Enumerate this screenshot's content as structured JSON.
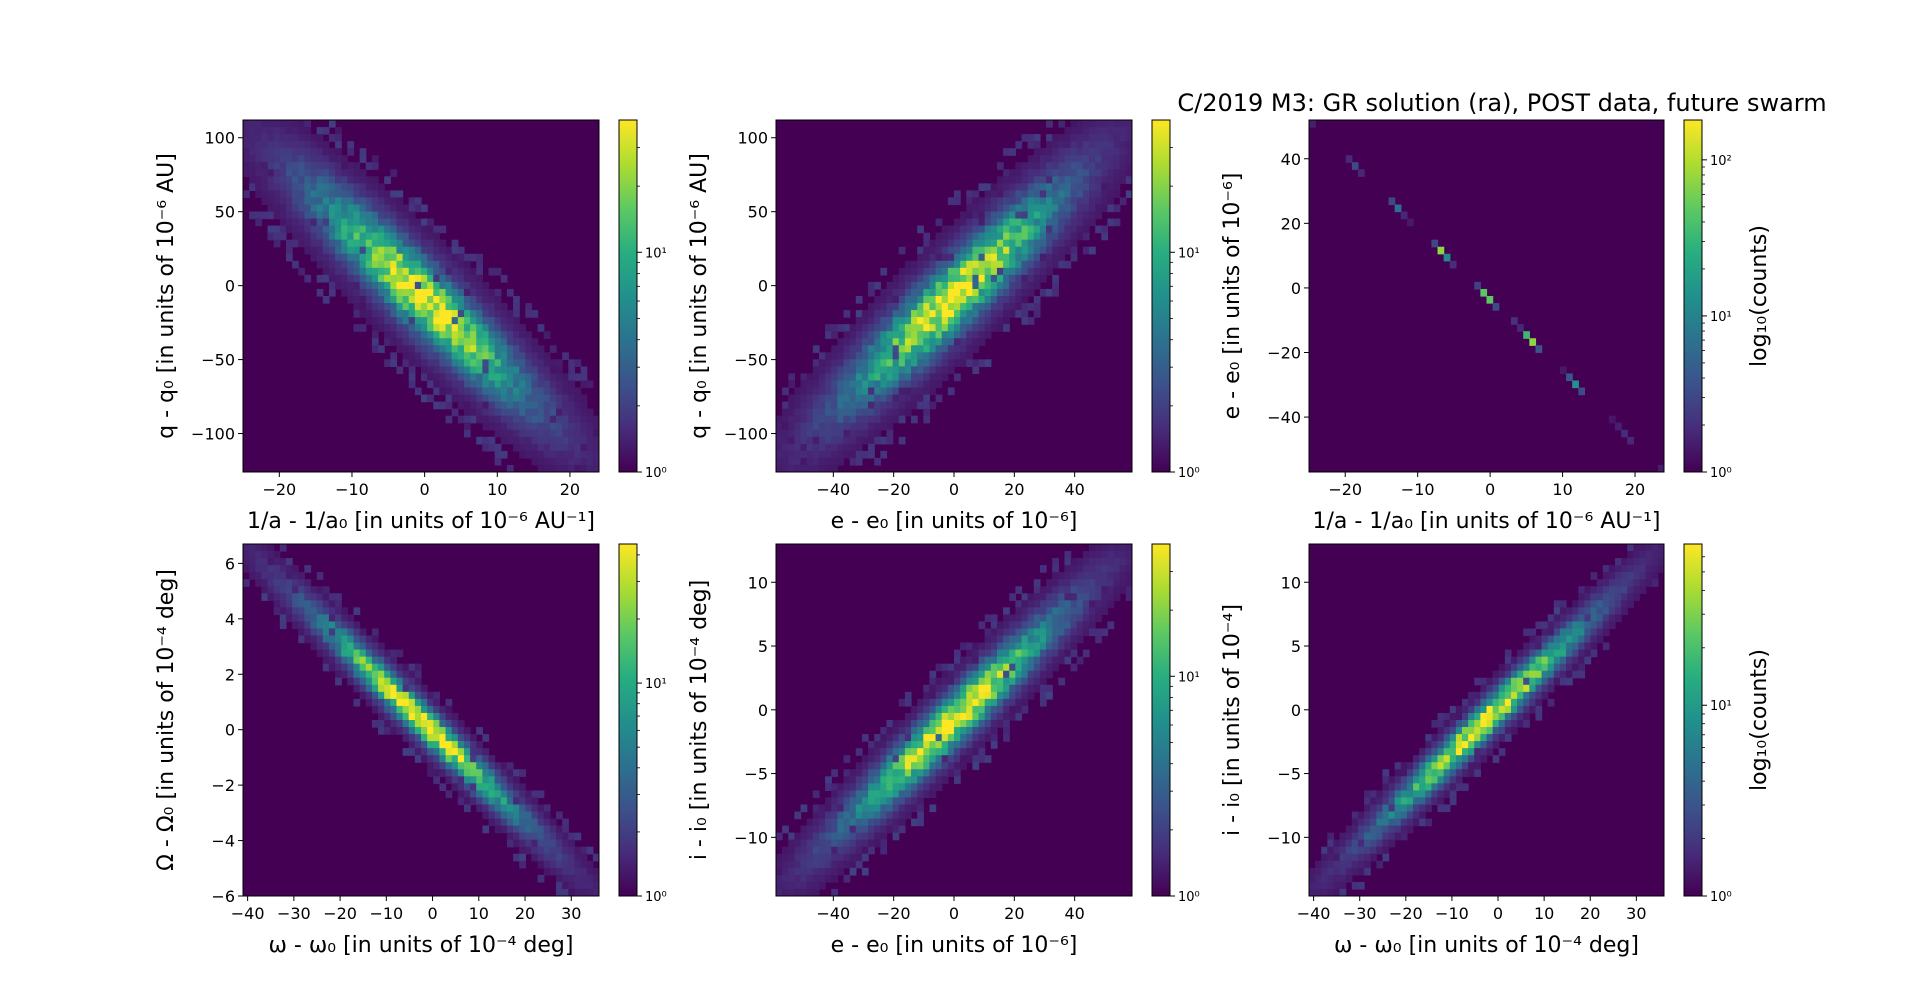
{
  "figure_title": "C/2019 M3: GR solution (ra), POST data, future swarm",
  "colormap": {
    "low": "#440154",
    "high": "#fde725",
    "stops": [
      "#440154",
      "#472d7b",
      "#3b528b",
      "#2c728e",
      "#21918c",
      "#28ae80",
      "#5ec962",
      "#addc30",
      "#fde725"
    ]
  },
  "chart_data": [
    {
      "type": "heatmap",
      "title": "",
      "xlabel": "1/a - 1/a₀ [in units of 10⁻⁶ AU⁻¹]",
      "ylabel": "q - q₀ [in units of 10⁻⁶ AU]",
      "xlim": [
        -25,
        24
      ],
      "ylim": [
        -126,
        112
      ],
      "xticks": [
        -20,
        -10,
        0,
        10,
        20
      ],
      "yticks": [
        -100,
        -50,
        0,
        50,
        100
      ],
      "xtick_labels": [
        "−20",
        "−10",
        "0",
        "10",
        "20"
      ],
      "ytick_labels": [
        "−100",
        "−50",
        "0",
        "50",
        "100"
      ],
      "correlation": "negative",
      "spread_along": 1.0,
      "spread_across": 0.14,
      "colorbar": {
        "scale": "log",
        "min": 1,
        "max": 40,
        "ticks": [
          1,
          10
        ],
        "tick_labels": [
          "10⁰",
          "10¹"
        ],
        "label": ""
      }
    },
    {
      "type": "heatmap",
      "title": "",
      "xlabel": "e - e₀ [in units of 10⁻⁶]",
      "ylabel": "q - q₀ [in units of 10⁻⁶ AU]",
      "xlim": [
        -59,
        59
      ],
      "ylim": [
        -126,
        112
      ],
      "xticks": [
        -40,
        -20,
        0,
        20,
        40
      ],
      "yticks": [
        -100,
        -50,
        0,
        50,
        100
      ],
      "xtick_labels": [
        "−40",
        "−20",
        "0",
        "20",
        "40"
      ],
      "ytick_labels": [
        "−100",
        "−50",
        "0",
        "50",
        "100"
      ],
      "correlation": "positive",
      "spread_along": 1.0,
      "spread_across": 0.14,
      "colorbar": {
        "scale": "log",
        "min": 1,
        "max": 40,
        "ticks": [
          1,
          10
        ],
        "tick_labels": [
          "10⁰",
          "10¹"
        ],
        "label": ""
      }
    },
    {
      "type": "heatmap",
      "title": "",
      "xlabel": "1/a - 1/a₀ [in units of 10⁻⁶ AU⁻¹]",
      "ylabel": "e - e₀ [in units of 10⁻⁶]",
      "xlim": [
        -25,
        24
      ],
      "ylim": [
        -57,
        52
      ],
      "xticks": [
        -20,
        -10,
        0,
        10,
        20
      ],
      "yticks": [
        -40,
        -20,
        0,
        20,
        40
      ],
      "xtick_labels": [
        "−20",
        "−10",
        "0",
        "10",
        "20"
      ],
      "ytick_labels": [
        "−40",
        "−20",
        "0",
        "20",
        "40"
      ],
      "correlation": "negative",
      "spread_along": 1.0,
      "spread_across": 0.004,
      "colorbar": {
        "scale": "log",
        "min": 1,
        "max": 180,
        "ticks": [
          1,
          10,
          100
        ],
        "tick_labels": [
          "10⁰",
          "10¹",
          "10²"
        ],
        "label": "log₁₀(counts)"
      }
    },
    {
      "type": "heatmap",
      "title": "",
      "xlabel": "ω - ω₀ [in units of 10⁻⁴ deg]",
      "ylabel": "Ω - Ω₀ [in units of 10⁻⁴ deg]",
      "xlim": [
        -41,
        36
      ],
      "ylim": [
        -6,
        6.7
      ],
      "xticks": [
        -40,
        -30,
        -20,
        -10,
        0,
        10,
        20,
        30
      ],
      "yticks": [
        -6,
        -4,
        -2,
        0,
        2,
        4,
        6
      ],
      "xtick_labels": [
        "−40",
        "−30",
        "−20",
        "−10",
        "0",
        "10",
        "20",
        "30"
      ],
      "ytick_labels": [
        "−6",
        "−4",
        "−2",
        "0",
        "2",
        "4",
        "6"
      ],
      "correlation": "negative",
      "spread_along": 1.0,
      "spread_across": 0.07,
      "colorbar": {
        "scale": "log",
        "min": 1,
        "max": 45,
        "ticks": [
          1,
          10
        ],
        "tick_labels": [
          "10⁰",
          "10¹"
        ],
        "label": ""
      }
    },
    {
      "type": "heatmap",
      "title": "",
      "xlabel": "e - e₀ [in units of 10⁻⁶]",
      "ylabel": "i - i₀ [in units of 10⁻⁴ deg]",
      "xlim": [
        -59,
        59
      ],
      "ylim": [
        -14.6,
        13
      ],
      "xticks": [
        -40,
        -20,
        0,
        20,
        40
      ],
      "yticks": [
        -10,
        -5,
        0,
        5,
        10
      ],
      "xtick_labels": [
        "−40",
        "−20",
        "0",
        "20",
        "40"
      ],
      "ytick_labels": [
        "−10",
        "−5",
        "0",
        "5",
        "10"
      ],
      "correlation": "positive",
      "spread_along": 1.0,
      "spread_across": 0.1,
      "colorbar": {
        "scale": "log",
        "min": 1,
        "max": 40,
        "ticks": [
          1,
          10
        ],
        "tick_labels": [
          "10⁰",
          "10¹"
        ],
        "label": ""
      }
    },
    {
      "type": "heatmap",
      "title": "",
      "xlabel": "ω - ω₀ [in units of 10⁻⁴ deg]",
      "ylabel": "i - i₀ [in units of 10⁻⁴]",
      "xlim": [
        -41,
        36
      ],
      "ylim": [
        -14.6,
        13
      ],
      "xticks": [
        -40,
        -30,
        -20,
        -10,
        0,
        10,
        20,
        30
      ],
      "yticks": [
        -10,
        -5,
        0,
        5,
        10
      ],
      "xtick_labels": [
        "−40",
        "−30",
        "−20",
        "−10",
        "0",
        "10",
        "20",
        "30"
      ],
      "ytick_labels": [
        "−10",
        "−5",
        "0",
        "5",
        "10"
      ],
      "correlation": "positive",
      "spread_along": 1.0,
      "spread_across": 0.07,
      "colorbar": {
        "scale": "log",
        "min": 1,
        "max": 70,
        "ticks": [
          1,
          10
        ],
        "tick_labels": [
          "10⁰",
          "10¹"
        ],
        "label": "log₁₀(counts)"
      }
    }
  ]
}
